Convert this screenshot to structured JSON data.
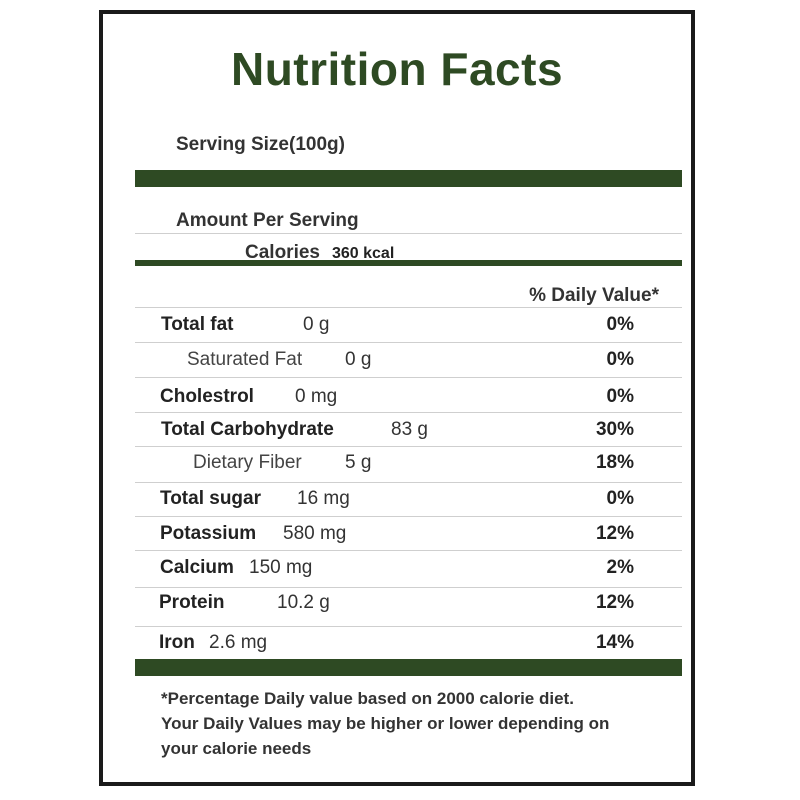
{
  "label": {
    "title": "Nutrition Facts",
    "serving_size": "Serving Size(100g)",
    "amount_per_serving": "Amount Per Serving",
    "calories_label": "Calories",
    "calories_value": "360 kcal",
    "daily_value_header": "% Daily Value*",
    "colors": {
      "accent": "#2e4a23",
      "border": "#1a1a1a",
      "text": "#333333"
    },
    "nutrients": [
      {
        "name": "Total fat",
        "amount": "0 g",
        "dv": "0%"
      },
      {
        "name": "Saturated Fat",
        "amount": "0 g",
        "dv": "0%"
      },
      {
        "name": "Cholestrol",
        "amount": "0 mg",
        "dv": "0%"
      },
      {
        "name": "Total Carbohydrate",
        "amount": "83 g",
        "dv": "30%"
      },
      {
        "name": "Dietary Fiber",
        "amount": "5 g",
        "dv": "18%"
      },
      {
        "name": "Total sugar",
        "amount": "16 mg",
        "dv": "0%"
      },
      {
        "name": "Potassium",
        "amount": "580 mg",
        "dv": "12%"
      },
      {
        "name": "Calcium",
        "amount": "150 mg",
        "dv": "2%"
      },
      {
        "name": "Protein",
        "amount": "10.2 g",
        "dv": "12%"
      },
      {
        "name": "Iron",
        "amount": "2.6 mg",
        "dv": "14%"
      }
    ],
    "footnote_line1": "*Percentage Daily value based on 2000 calorie diet.",
    "footnote_line2": "Your Daily Values may be higher or lower depending on",
    "footnote_line3": "your calorie needs"
  }
}
